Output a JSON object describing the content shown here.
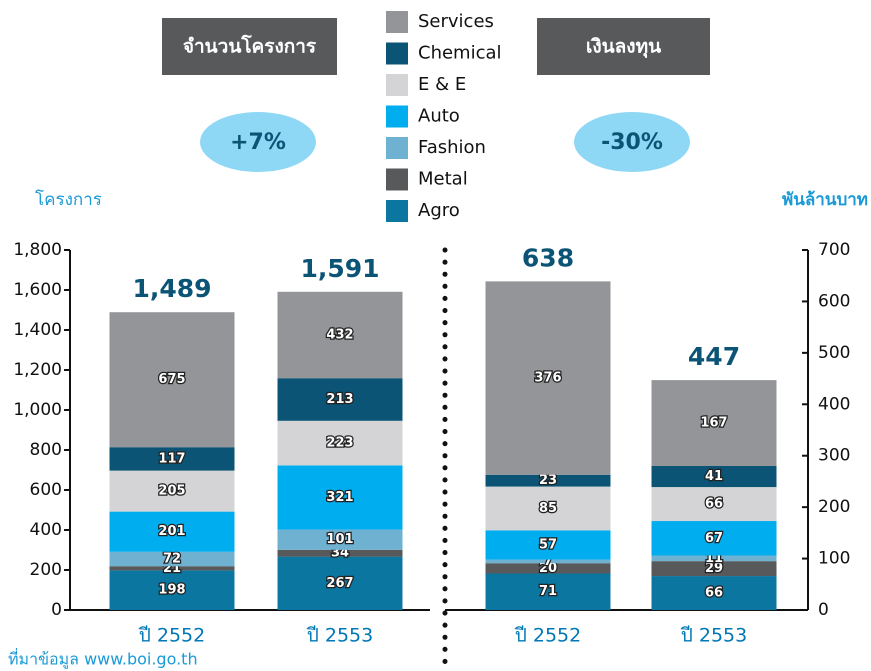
{
  "chart_data": [
    {
      "type": "stacked_bar",
      "title": "จำนวนโครงการ",
      "change": "+7%",
      "y_label": "โครงการ",
      "categories": [
        "ปี 2552",
        "ปี 2553"
      ],
      "series": [
        {
          "name": "Agro",
          "color": "#0b76a0",
          "values": [
            198,
            267
          ]
        },
        {
          "name": "Metal",
          "color": "#58595b",
          "values": [
            21,
            34
          ]
        },
        {
          "name": "Fashion",
          "color": "#6fb1d0",
          "values": [
            72,
            101
          ]
        },
        {
          "name": "Auto",
          "color": "#00aeef",
          "values": [
            201,
            321
          ]
        },
        {
          "name": "E & E",
          "color": "#d4d4d6",
          "values": [
            205,
            223
          ]
        },
        {
          "name": "Chemical",
          "color": "#0b5475",
          "values": [
            117,
            213
          ]
        },
        {
          "name": "Services",
          "color": "#939598",
          "values": [
            675,
            432
          ]
        }
      ],
      "totals": {
        "values": [
          1489,
          1591
        ],
        "value_labels": [
          "1,489",
          "1,591"
        ]
      },
      "ylim": [
        0,
        1800
      ],
      "yticks": [
        0,
        200,
        400,
        600,
        800,
        {
          "value": 1000,
          "label": "1,000"
        },
        {
          "value": 1200,
          "label": "1,200"
        },
        {
          "value": 1400,
          "label": "1,400"
        },
        {
          "value": 1600,
          "label": "1,600"
        },
        {
          "value": 1800,
          "label": "1,800"
        }
      ],
      "axis_side": "left"
    },
    {
      "type": "stacked_bar",
      "title": "เงินลงทุน",
      "change": "-30%",
      "y_label": "พันล้านบาท",
      "categories": [
        "ปี 2552",
        "ปี 2553"
      ],
      "series": [
        {
          "name": "Agro",
          "color": "#0b76a0",
          "values": [
            71,
            66
          ]
        },
        {
          "name": "Metal",
          "color": "#58595b",
          "values": [
            20,
            29
          ]
        },
        {
          "name": "Fashion",
          "color": "#6fb1d0",
          "values": [
            7,
            11
          ]
        },
        {
          "name": "Auto",
          "color": "#00aeef",
          "values": [
            57,
            67
          ]
        },
        {
          "name": "E & E",
          "color": "#d4d4d6",
          "values": [
            85,
            66
          ]
        },
        {
          "name": "Chemical",
          "color": "#0b5475",
          "values": [
            23,
            41
          ]
        },
        {
          "name": "Services",
          "color": "#939598",
          "values": [
            376,
            167
          ]
        }
      ],
      "totals": {
        "values": [
          638,
          447
        ]
      },
      "ylim": [
        0,
        700
      ],
      "yticks": [
        0,
        100,
        200,
        300,
        400,
        500,
        600,
        700
      ],
      "axis_side": "right"
    }
  ],
  "source": "ที่มาข้อมูล www.boi.go.th"
}
